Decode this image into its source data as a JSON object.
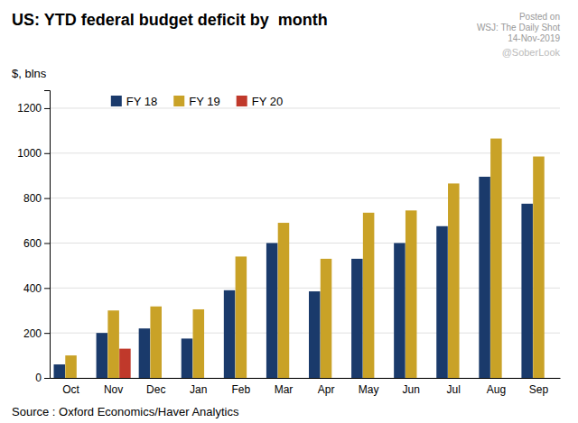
{
  "chart_data": {
    "type": "bar",
    "title": "US: YTD federal budget deficit by  month",
    "ylabel": "$, blns",
    "annotations": [
      "Posted on",
      "WSJ: The Daily Shot",
      "14-Nov-2019",
      "@SoberLook",
      "Source : Oxford Economics/Haver Analytics"
    ],
    "categories": [
      "Oct",
      "Nov",
      "Dec",
      "Jan",
      "Feb",
      "Mar",
      "Apr",
      "May",
      "Jun",
      "Jul",
      "Aug",
      "Sep"
    ],
    "series": [
      {
        "name": "FY 18",
        "color": "#1a3a6b",
        "values": [
          60,
          200,
          220,
          175,
          390,
          600,
          385,
          530,
          600,
          675,
          895,
          775
        ]
      },
      {
        "name": "FY 19",
        "color": "#c9a227",
        "values": [
          100,
          300,
          318,
          305,
          540,
          690,
          530,
          735,
          745,
          865,
          1065,
          985
        ]
      },
      {
        "name": "FY 20",
        "color": "#c0392b",
        "values": [
          null,
          130,
          null,
          null,
          null,
          null,
          null,
          null,
          null,
          null,
          null,
          null
        ]
      }
    ],
    "ylim": [
      0,
      1280
    ],
    "yticks": [
      0,
      200,
      400,
      600,
      800,
      1000,
      1200
    ],
    "grid": true,
    "legend": "upper left"
  }
}
